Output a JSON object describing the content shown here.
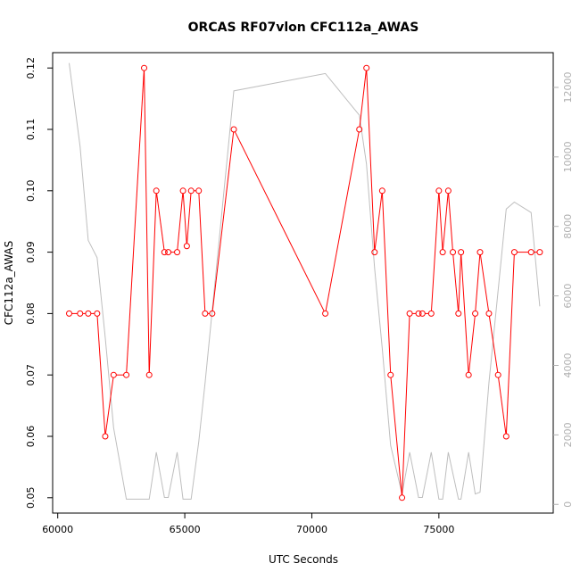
{
  "chart_data": {
    "type": "line",
    "title": "ORCAS RF07vlon CFC112a_AWAS",
    "xlabel": "UTC Seconds",
    "ylabel": "CFC112a_AWAS",
    "xlim": [
      59800,
      79500
    ],
    "ylim": [
      0.0475,
      0.1225
    ],
    "y2lim": [
      -250,
      13000
    ],
    "x_ticks": [
      60000,
      65000,
      70000,
      75000
    ],
    "y_ticks": [
      0.05,
      0.06,
      0.07,
      0.08,
      0.09,
      0.1,
      0.11,
      0.12
    ],
    "y2_ticks": [
      0,
      2000,
      4000,
      6000,
      8000,
      10000,
      12000
    ],
    "grid": false,
    "colors": {
      "primary": "#ff0000",
      "secondary": "#bebebe",
      "axis": "#000000",
      "right_axis": "#b0b0b0"
    },
    "series": [
      {
        "role": "primary",
        "points": [
          [
            60450,
            0.08
          ],
          [
            60880,
            0.08
          ],
          [
            61200,
            0.08
          ],
          [
            61550,
            0.08
          ],
          [
            61870,
            0.06
          ],
          [
            62200,
            0.07
          ],
          [
            62700,
            0.07
          ],
          [
            63400,
            0.12
          ],
          [
            63600,
            0.07
          ],
          [
            63880,
            0.1
          ],
          [
            64200,
            0.09
          ],
          [
            64350,
            0.09
          ],
          [
            64700,
            0.09
          ],
          [
            64930,
            0.1
          ],
          [
            65080,
            0.091
          ],
          [
            65250,
            0.1
          ],
          [
            65550,
            0.1
          ],
          [
            65800,
            0.08
          ],
          [
            66080,
            0.08
          ],
          [
            66930,
            0.11
          ],
          [
            70530,
            0.08
          ],
          [
            71870,
            0.11
          ],
          [
            72150,
            0.12
          ],
          [
            72470,
            0.09
          ],
          [
            72770,
            0.1
          ],
          [
            73100,
            0.07
          ],
          [
            73550,
            0.05
          ],
          [
            73850,
            0.08
          ],
          [
            74200,
            0.08
          ],
          [
            74350,
            0.08
          ],
          [
            74700,
            0.08
          ],
          [
            75000,
            0.1
          ],
          [
            75150,
            0.09
          ],
          [
            75370,
            0.1
          ],
          [
            75550,
            0.09
          ],
          [
            75770,
            0.08
          ],
          [
            75870,
            0.09
          ],
          [
            76170,
            0.07
          ],
          [
            76430,
            0.08
          ],
          [
            76620,
            0.09
          ],
          [
            76970,
            0.08
          ],
          [
            77330,
            0.07
          ],
          [
            77650,
            0.06
          ],
          [
            77970,
            0.09
          ],
          [
            78630,
            0.09
          ],
          [
            78970,
            0.09
          ]
        ]
      },
      {
        "role": "secondary",
        "points": [
          [
            60450,
            12700
          ],
          [
            60880,
            10300
          ],
          [
            61200,
            7600
          ],
          [
            61550,
            7100
          ],
          [
            61870,
            4800
          ],
          [
            62200,
            2200
          ],
          [
            62700,
            150
          ],
          [
            63600,
            150
          ],
          [
            63880,
            1500
          ],
          [
            64200,
            200
          ],
          [
            64350,
            200
          ],
          [
            64700,
            1500
          ],
          [
            64930,
            150
          ],
          [
            65250,
            150
          ],
          [
            65550,
            1800
          ],
          [
            65800,
            3500
          ],
          [
            66930,
            11900
          ],
          [
            70530,
            12400
          ],
          [
            71870,
            11200
          ],
          [
            72150,
            9800
          ],
          [
            72470,
            6800
          ],
          [
            72770,
            4500
          ],
          [
            73100,
            1700
          ],
          [
            73550,
            300
          ],
          [
            73850,
            1500
          ],
          [
            74200,
            200
          ],
          [
            74350,
            200
          ],
          [
            74700,
            1500
          ],
          [
            75000,
            150
          ],
          [
            75150,
            150
          ],
          [
            75370,
            1500
          ],
          [
            75770,
            150
          ],
          [
            75870,
            150
          ],
          [
            76170,
            1500
          ],
          [
            76430,
            300
          ],
          [
            76620,
            350
          ],
          [
            76970,
            3500
          ],
          [
            77650,
            8500
          ],
          [
            77970,
            8700
          ],
          [
            78630,
            8400
          ],
          [
            78970,
            5700
          ]
        ]
      }
    ]
  }
}
